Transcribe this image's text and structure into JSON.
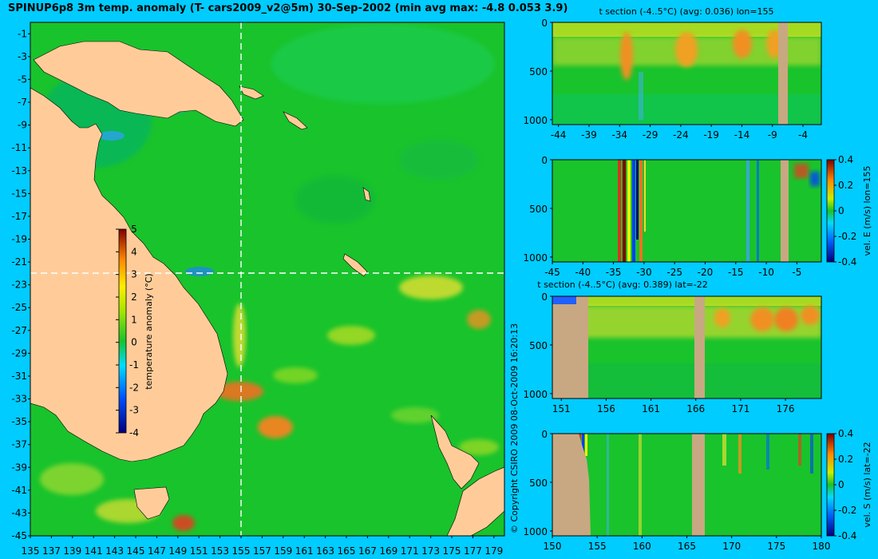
{
  "title": "SPINUP6p8 3m temp. anomaly (T- cars2009_v2@5m) 30-Sep-2002 (min avg max: -4.8 0.053 3.9)",
  "copyright": "© Copyright CSIRO 2009   08-Oct-2009 16:20:13",
  "colors": {
    "background": "#00CCFF",
    "land": "#FFCC99",
    "section_land": "#C8A882",
    "ocean_base": "#19C32C"
  },
  "chart_data": [
    {
      "type": "heatmap",
      "name": "map",
      "title": "SPINUP6p8 3m temp. anomaly (T- cars2009_v2@5m) 30-Sep-2002 (min avg max: -4.8 0.053 3.9)",
      "x_ticks": [
        "135",
        "137",
        "139",
        "141",
        "143",
        "145",
        "147",
        "149",
        "151",
        "153",
        "155",
        "157",
        "159",
        "161",
        "163",
        "165",
        "167",
        "169",
        "171",
        "173",
        "175",
        "177",
        "179"
      ],
      "y_ticks": [
        "-1",
        "-3",
        "-5",
        "-7",
        "-9",
        "-11",
        "-13",
        "-15",
        "-17",
        "-19",
        "-21",
        "-23",
        "-25",
        "-27",
        "-29",
        "-31",
        "-33",
        "-35",
        "-37",
        "-39",
        "-41",
        "-43",
        "-45"
      ],
      "xlim": [
        135,
        180
      ],
      "ylim": [
        -45,
        0
      ],
      "section_lines": {
        "lon": 155,
        "lat": -22
      },
      "colorbar": {
        "label": "temperature anomaly (°C)",
        "ticks": [
          "5",
          "4",
          "3",
          "2",
          "1",
          "0",
          "-1",
          "-2",
          "-3",
          "-4"
        ],
        "range": [
          -4,
          5
        ]
      }
    },
    {
      "type": "heatmap",
      "name": "t-section-lon",
      "title": "t section (-4..5°C) (avg: 0.036) lon=155",
      "x_ticks": [
        "-44",
        "-39",
        "-34",
        "-29",
        "-24",
        "-19",
        "-14",
        "-9",
        "-4"
      ],
      "y_ticks": [
        "0",
        "500",
        "1000"
      ],
      "ylim": [
        0,
        1050
      ]
    },
    {
      "type": "heatmap",
      "name": "vel-e-section",
      "title": "",
      "x_ticks": [
        "-45",
        "-40",
        "-35",
        "-30",
        "-25",
        "-20",
        "-15",
        "-10",
        "-5"
      ],
      "y_ticks": [
        "0",
        "500",
        "1000"
      ],
      "ylim": [
        0,
        1050
      ],
      "colorbar": {
        "label": "vel. E (m/s) lon=155",
        "ticks": [
          "0.4",
          "0.2",
          "0",
          "-0.2",
          "-0.4"
        ],
        "range": [
          -0.4,
          0.4
        ]
      }
    },
    {
      "type": "heatmap",
      "name": "t-section-lat",
      "title": "t section (-4..5°C) (avg: 0.389) lat=-22",
      "x_ticks": [
        "151",
        "156",
        "161",
        "166",
        "171",
        "176"
      ],
      "y_ticks": [
        "0",
        "500",
        "1000"
      ],
      "ylim": [
        0,
        1050
      ]
    },
    {
      "type": "heatmap",
      "name": "vel-s-section",
      "title": "",
      "x_ticks": [
        "150",
        "155",
        "160",
        "165",
        "170",
        "175",
        "180"
      ],
      "y_ticks": [
        "0",
        "500",
        "1000"
      ],
      "ylim": [
        0,
        1050
      ],
      "colorbar": {
        "label": "vel. S (m/s) lat=-22",
        "ticks": [
          "0.4",
          "0.2",
          "0",
          "-0.2",
          "-0.4"
        ],
        "range": [
          -0.4,
          0.4
        ]
      }
    }
  ]
}
